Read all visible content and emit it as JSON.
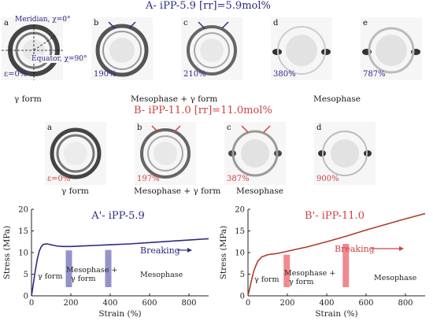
{
  "row_a": {
    "title": "A- iPP-5.9 [rr]=5.9mol%",
    "annotations": {
      "meridian": "Meridian, χ=0°",
      "equator": "Equator, χ=90°"
    },
    "panels": [
      {
        "letter": "a",
        "strain": "ε=0%"
      },
      {
        "letter": "b",
        "strain": "190%"
      },
      {
        "letter": "c",
        "strain": "210%"
      },
      {
        "letter": "d",
        "strain": "380%"
      },
      {
        "letter": "e",
        "strain": "787%"
      }
    ],
    "captions": [
      "γ form",
      "Mesophase + γ form",
      "Mesophase"
    ]
  },
  "row_b": {
    "title": "B- iPP-11.0 [rr]=11.0mol%",
    "panels": [
      {
        "letter": "a",
        "strain": "ε=0%"
      },
      {
        "letter": "b",
        "strain": "197%"
      },
      {
        "letter": "c",
        "strain": "387%"
      },
      {
        "letter": "d",
        "strain": "900%"
      }
    ],
    "captions": [
      "γ form",
      "Mesophase + γ form",
      "Mesophase"
    ]
  },
  "chart_data": [
    {
      "type": "line",
      "title": "A'- iPP-5.9",
      "xlabel": "Strain (%)",
      "ylabel": "Stress (MPa)",
      "xlim": [
        0,
        900
      ],
      "ylim": [
        0,
        20
      ],
      "xticks": [
        0,
        200,
        400,
        600,
        800
      ],
      "yticks": [
        0,
        5,
        10,
        15,
        20
      ],
      "series": [
        {
          "color": "#2f2a86",
          "x": [
            0,
            10,
            20,
            30,
            40,
            50,
            60,
            80,
            100,
            130,
            160,
            200,
            300,
            400,
            500,
            600,
            700,
            800,
            900
          ],
          "y": [
            0,
            3.0,
            6.0,
            8.6,
            10.4,
            11.4,
            11.9,
            12.0,
            11.8,
            11.5,
            11.4,
            11.4,
            11.6,
            11.8,
            12.0,
            12.3,
            12.6,
            12.9,
            13.2
          ]
        }
      ],
      "markers": [
        {
          "x": 190,
          "y0": 2,
          "y1": 10.5,
          "color": "#8a86c4"
        },
        {
          "x": 390,
          "y0": 2,
          "y1": 10.6,
          "color": "#8a86c4"
        }
      ],
      "labels": {
        "breaking": "Breaking",
        "gamma": "γ form",
        "mixed_1": "Mesophase +",
        "mixed_2": "γ form",
        "meso": "Mesophase"
      }
    },
    {
      "type": "line",
      "title": "B'- iPP-11.0",
      "xlabel": "Strain (%)",
      "ylabel": "Stress (MPa)",
      "xlim": [
        0,
        900
      ],
      "ylim": [
        0,
        20
      ],
      "xticks": [
        0,
        200,
        400,
        600,
        800
      ],
      "yticks": [
        0,
        5,
        10,
        15,
        20
      ],
      "series": [
        {
          "color": "#b03a2a",
          "x": [
            0,
            10,
            20,
            30,
            40,
            50,
            70,
            100,
            150,
            200,
            300,
            400,
            500,
            600,
            700,
            800,
            900
          ],
          "y": [
            0,
            2.0,
            4.0,
            5.8,
            7.0,
            8.0,
            9.0,
            9.5,
            9.8,
            10.3,
            11.3,
            12.5,
            13.8,
            15.2,
            16.5,
            17.8,
            19.0
          ]
        }
      ],
      "markers": [
        {
          "x": 197,
          "y0": 2,
          "y1": 9.5,
          "color": "#ef7c84"
        },
        {
          "x": 497,
          "y0": 2,
          "y1": 12,
          "color": "#ef7c84"
        }
      ],
      "labels": {
        "breaking": "Breaking",
        "gamma": "γ form",
        "mixed_1": "Mesophase +",
        "mixed_2": "γ form",
        "meso": "Mesophase"
      }
    }
  ]
}
